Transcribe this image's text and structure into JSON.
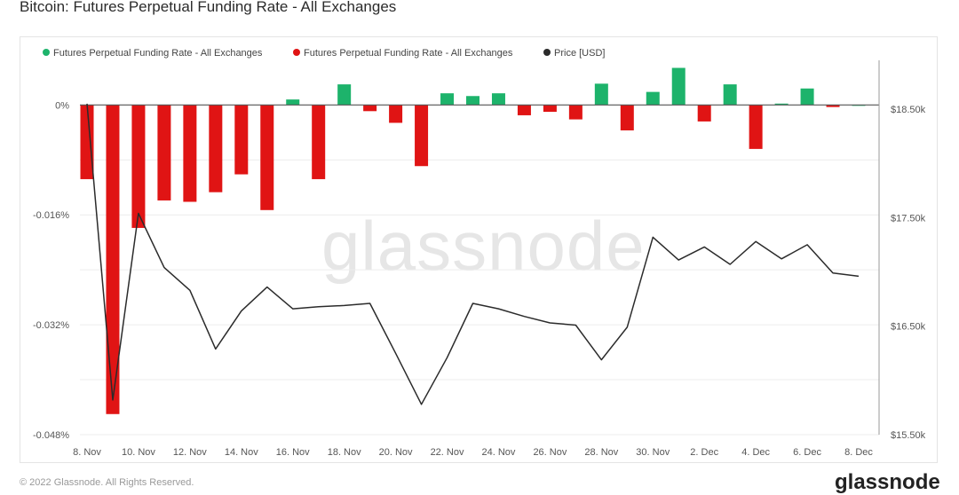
{
  "title": "Bitcoin: Futures Perpetual Funding Rate - All Exchanges",
  "watermark": "glassnode",
  "footer": {
    "copyright": "© 2022 Glassnode. All Rights Reserved.",
    "logo": "glassnode"
  },
  "colors": {
    "positive": "#1db36b",
    "negative": "#e01414",
    "price": "#2b2b2b",
    "grid": "#ececec",
    "zero": "#555555"
  },
  "chart_data": {
    "type": "bar",
    "legend": [
      {
        "label": "Futures Perpetual Funding Rate - All Exchanges",
        "color": "#1db36b",
        "kind": "dot"
      },
      {
        "label": "Futures Perpetual Funding Rate - All Exchanges",
        "color": "#e01414",
        "kind": "dot"
      },
      {
        "label": "Price [USD]",
        "color": "#2b2b2b",
        "kind": "dot"
      }
    ],
    "x_tick_labels": [
      "8. Nov",
      "10. Nov",
      "12. Nov",
      "14. Nov",
      "16. Nov",
      "18. Nov",
      "20. Nov",
      "22. Nov",
      "24. Nov",
      "26. Nov",
      "28. Nov",
      "30. Nov",
      "2. Dec",
      "4. Dec",
      "6. Dec",
      "8. Dec"
    ],
    "left_axis": {
      "ticks": [
        "0%",
        "-0.016%",
        "-0.032%",
        "-0.048%"
      ],
      "tick_values": [
        0,
        -0.016,
        -0.032,
        -0.048
      ],
      "range": [
        -0.048,
        0.0065
      ]
    },
    "right_axis": {
      "ticks": [
        "$18.50k",
        "$17.50k",
        "$16.50k",
        "$15.50k"
      ],
      "tick_values": [
        18500,
        17500,
        16500,
        15500
      ],
      "range": [
        15500,
        18950
      ]
    },
    "dates": [
      "8. Nov",
      "9. Nov",
      "10. Nov",
      "11. Nov",
      "12. Nov",
      "13. Nov",
      "14. Nov",
      "15. Nov",
      "16. Nov",
      "17. Nov",
      "18. Nov",
      "19. Nov",
      "20. Nov",
      "21. Nov",
      "22. Nov",
      "23. Nov",
      "24. Nov",
      "25. Nov",
      "26. Nov",
      "27. Nov",
      "28. Nov",
      "29. Nov",
      "30. Nov",
      "1. Dec",
      "2. Dec",
      "3. Dec",
      "4. Dec",
      "5. Dec",
      "6. Dec",
      "7. Dec",
      "8. Dec"
    ],
    "funding_rate": [
      -0.0108,
      -0.045,
      -0.0179,
      -0.0139,
      -0.0141,
      -0.0127,
      -0.0101,
      -0.0153,
      0.0008,
      -0.0108,
      0.003,
      -0.0009,
      -0.0026,
      -0.0089,
      0.0017,
      0.0013,
      0.0017,
      -0.0015,
      -0.001,
      -0.0021,
      0.0031,
      -0.0037,
      0.0019,
      0.0054,
      -0.0024,
      0.003,
      -0.0064,
      0.0002,
      0.0024,
      -0.0003,
      0.0
    ],
    "price": [
      18550,
      15820,
      17540,
      17040,
      16830,
      16290,
      16640,
      16860,
      16660,
      16680,
      16690,
      16710,
      16250,
      15780,
      16210,
      16710,
      16660,
      16590,
      16530,
      16510,
      16190,
      16490,
      17320,
      17110,
      17230,
      17070,
      17280,
      17120,
      17250,
      16990,
      16960
    ]
  }
}
